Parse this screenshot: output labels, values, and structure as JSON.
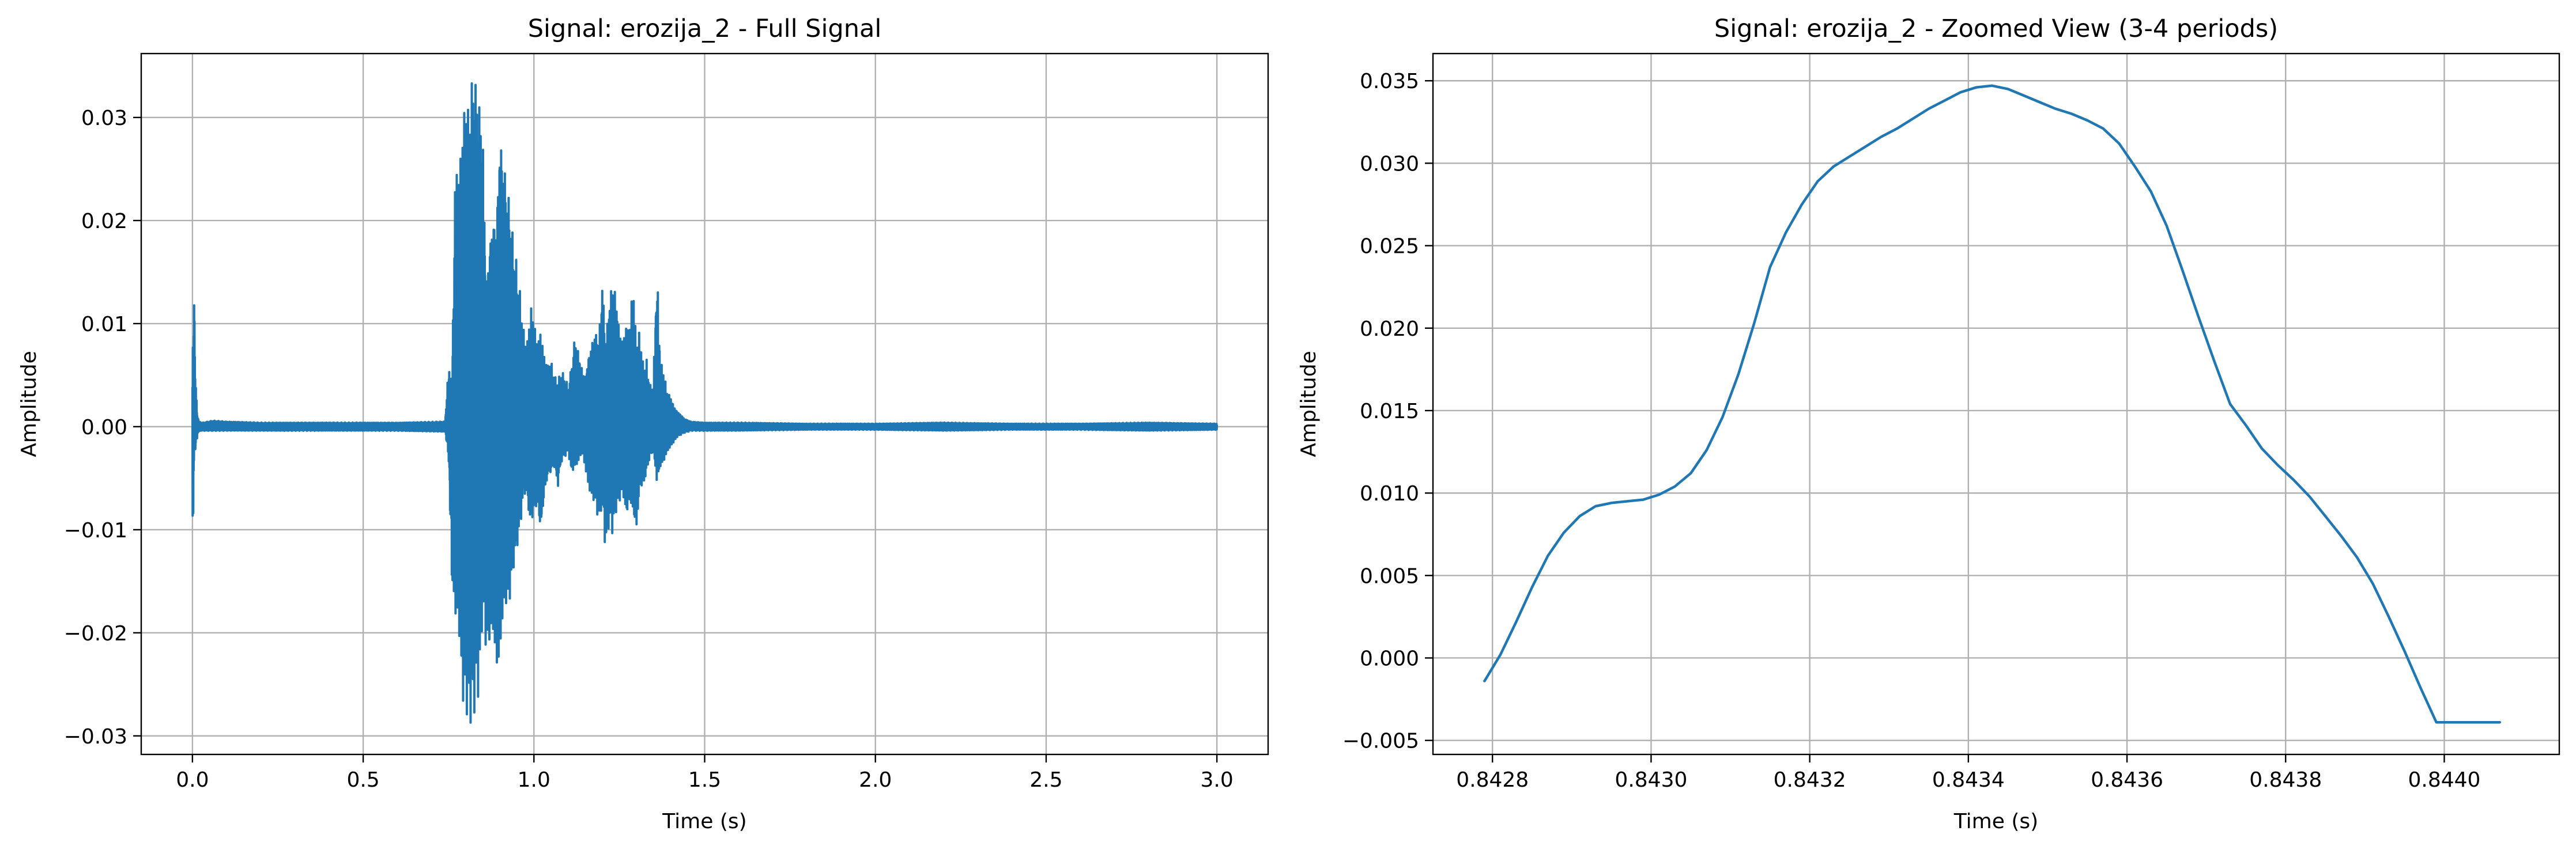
{
  "chart_data": [
    {
      "type": "line",
      "title": "Signal: erozija_2 - Full Signal",
      "xlabel": "Time (s)",
      "ylabel": "Amplitude",
      "xlim": [
        -0.15,
        3.15
      ],
      "ylim": [
        -0.0318,
        0.0362
      ],
      "xticks": [
        0.0,
        0.5,
        1.0,
        1.5,
        2.0,
        2.5,
        3.0
      ],
      "xtick_labels": [
        "0.0",
        "0.5",
        "1.0",
        "1.5",
        "2.0",
        "2.5",
        "3.0"
      ],
      "yticks": [
        -0.03,
        -0.02,
        -0.01,
        0.0,
        0.01,
        0.02,
        0.03
      ],
      "ytick_labels": [
        "−0.03",
        "−0.02",
        "−0.01",
        "0.00",
        "0.01",
        "0.02",
        "0.03"
      ],
      "grid": true,
      "line_color": "#1f77b4",
      "series": [
        {
          "x": [
            0.0,
            0.005,
            0.01,
            0.015,
            0.02,
            0.03,
            0.06,
            0.1,
            0.2,
            0.4,
            0.6,
            0.74,
            0.75,
            0.76,
            0.77,
            0.78,
            0.79,
            0.8,
            0.81,
            0.82,
            0.83,
            0.84,
            0.85,
            0.86,
            0.87,
            0.88,
            0.89,
            0.9,
            0.91,
            0.92,
            0.93,
            0.94,
            0.95,
            0.96,
            0.97,
            0.98,
            0.99,
            1.0,
            1.01,
            1.02,
            1.03,
            1.04,
            1.05,
            1.06,
            1.07,
            1.08,
            1.09,
            1.1,
            1.11,
            1.12,
            1.13,
            1.14,
            1.15,
            1.16,
            1.17,
            1.18,
            1.19,
            1.2,
            1.21,
            1.22,
            1.23,
            1.24,
            1.25,
            1.26,
            1.27,
            1.28,
            1.29,
            1.3,
            1.31,
            1.32,
            1.33,
            1.34,
            1.35,
            1.36,
            1.37,
            1.38,
            1.39,
            1.4,
            1.41,
            1.42,
            1.43,
            1.44,
            1.46,
            1.5,
            1.6,
            1.8,
            2.0,
            2.2,
            2.4,
            2.6,
            2.8,
            3.0
          ],
          "upper": [
            0.007,
            0.0135,
            0.004,
            0.001,
            0.0005,
            0.0004,
            0.0006,
            0.0005,
            0.0004,
            0.0004,
            0.0004,
            0.0005,
            0.006,
            0.0045,
            0.026,
            0.025,
            0.029,
            0.033,
            0.031,
            0.035,
            0.034,
            0.032,
            0.0295,
            0.014,
            0.018,
            0.021,
            0.02,
            0.029,
            0.027,
            0.024,
            0.022,
            0.018,
            0.016,
            0.013,
            0.0095,
            0.008,
            0.012,
            0.0105,
            0.008,
            0.0095,
            0.007,
            0.006,
            0.0065,
            0.005,
            0.0045,
            0.0055,
            0.005,
            0.004,
            0.006,
            0.009,
            0.0075,
            0.006,
            0.005,
            0.007,
            0.0085,
            0.0095,
            0.0085,
            0.0145,
            0.0085,
            0.012,
            0.0145,
            0.013,
            0.0095,
            0.0085,
            0.01,
            0.0095,
            0.0145,
            0.008,
            0.0095,
            0.006,
            0.0065,
            0.004,
            0.0045,
            0.016,
            0.0065,
            0.0055,
            0.0035,
            0.003,
            0.002,
            0.0015,
            0.0012,
            0.0008,
            0.0005,
            0.0004,
            0.0004,
            0.0003,
            0.0003,
            0.0004,
            0.0003,
            0.0003,
            0.0004,
            0.0003
          ],
          "lower": [
            -0.0145,
            -0.003,
            -0.002,
            -0.0008,
            -0.0004,
            -0.0004,
            -0.0004,
            -0.0004,
            -0.0004,
            -0.0004,
            -0.0004,
            -0.0005,
            -0.003,
            -0.016,
            -0.019,
            -0.02,
            -0.027,
            -0.028,
            -0.029,
            -0.029,
            -0.027,
            -0.026,
            -0.018,
            -0.022,
            -0.021,
            -0.02,
            -0.024,
            -0.023,
            -0.018,
            -0.0175,
            -0.017,
            -0.014,
            -0.012,
            -0.01,
            -0.0065,
            -0.007,
            -0.01,
            -0.0085,
            -0.008,
            -0.0105,
            -0.007,
            -0.005,
            -0.0045,
            -0.004,
            -0.006,
            -0.0035,
            -0.003,
            -0.0025,
            -0.0045,
            -0.004,
            -0.0035,
            -0.0025,
            -0.004,
            -0.006,
            -0.007,
            -0.0075,
            -0.0095,
            -0.0075,
            -0.0125,
            -0.0095,
            -0.0105,
            -0.0085,
            -0.0075,
            -0.0065,
            -0.009,
            -0.0075,
            -0.0085,
            -0.0105,
            -0.006,
            -0.006,
            -0.0045,
            -0.003,
            -0.0025,
            -0.0055,
            -0.004,
            -0.0035,
            -0.0025,
            -0.002,
            -0.0015,
            -0.001,
            -0.0008,
            -0.0006,
            -0.0004,
            -0.0004,
            -0.0004,
            -0.0003,
            -0.0003,
            -0.0004,
            -0.0003,
            -0.0003,
            -0.0004,
            -0.0003
          ]
        }
      ]
    },
    {
      "type": "line",
      "title": "Signal: erozija_2 - Zoomed View (3-4 periods)",
      "xlabel": "Time (s)",
      "ylabel": "Amplitude",
      "xlim": [
        0.842725,
        0.844145
      ],
      "ylim": [
        -0.00585,
        0.03665
      ],
      "xticks": [
        0.8428,
        0.843,
        0.8432,
        0.8434,
        0.8436,
        0.8438,
        0.844
      ],
      "xtick_labels": [
        "0.8428",
        "0.8430",
        "0.8432",
        "0.8434",
        "0.8436",
        "0.8438",
        "0.8440"
      ],
      "yticks": [
        -0.005,
        0.0,
        0.005,
        0.01,
        0.015,
        0.02,
        0.025,
        0.03,
        0.035
      ],
      "ytick_labels": [
        "−0.005",
        "0.000",
        "0.005",
        "0.010",
        "0.015",
        "0.020",
        "0.025",
        "0.030",
        "0.035"
      ],
      "grid": true,
      "line_color": "#1f77b4",
      "series": [
        {
          "x": [
            0.84279,
            0.84281,
            0.84283,
            0.84285,
            0.84287,
            0.84289,
            0.84291,
            0.84293,
            0.84295,
            0.84297,
            0.84299,
            0.84301,
            0.84303,
            0.84305,
            0.84307,
            0.84309,
            0.84311,
            0.84313,
            0.84315,
            0.84317,
            0.84319,
            0.84321,
            0.84323,
            0.84325,
            0.84327,
            0.84329,
            0.84331,
            0.84333,
            0.84335,
            0.84337,
            0.84339,
            0.84341,
            0.84343,
            0.84345,
            0.84347,
            0.84349,
            0.84351,
            0.84353,
            0.84355,
            0.84357,
            0.84359,
            0.84361,
            0.84363,
            0.84365,
            0.84367,
            0.84369,
            0.84371,
            0.84373,
            0.84375,
            0.84377,
            0.84379,
            0.84381,
            0.84383,
            0.84385,
            0.84387,
            0.84389,
            0.84391,
            0.84393,
            0.84395,
            0.84397,
            0.84399,
            0.84401,
            0.84403,
            0.84405,
            0.84407
          ],
          "y": [
            -0.0014,
            0.0002,
            0.0022,
            0.0043,
            0.0062,
            0.0076,
            0.0086,
            0.0092,
            0.0094,
            0.0095,
            0.0096,
            0.0099,
            0.0104,
            0.0112,
            0.0126,
            0.0146,
            0.0172,
            0.0203,
            0.0237,
            0.0258,
            0.0275,
            0.0289,
            0.0298,
            0.0304,
            0.031,
            0.0316,
            0.0321,
            0.0327,
            0.0333,
            0.0338,
            0.0343,
            0.0346,
            0.0347,
            0.0345,
            0.0341,
            0.0337,
            0.0333,
            0.033,
            0.0326,
            0.0321,
            0.0312,
            0.0298,
            0.0283,
            0.0262,
            0.0235,
            0.0207,
            0.018,
            0.0154,
            0.0141,
            0.0127,
            0.0117,
            0.0108,
            0.0098,
            0.0086,
            0.0074,
            0.0061,
            0.0045,
            0.0025,
            0.0004,
            -0.0018,
            -0.0039,
            -0.0039,
            -0.0039,
            -0.0039,
            -0.0039
          ]
        }
      ]
    }
  ]
}
